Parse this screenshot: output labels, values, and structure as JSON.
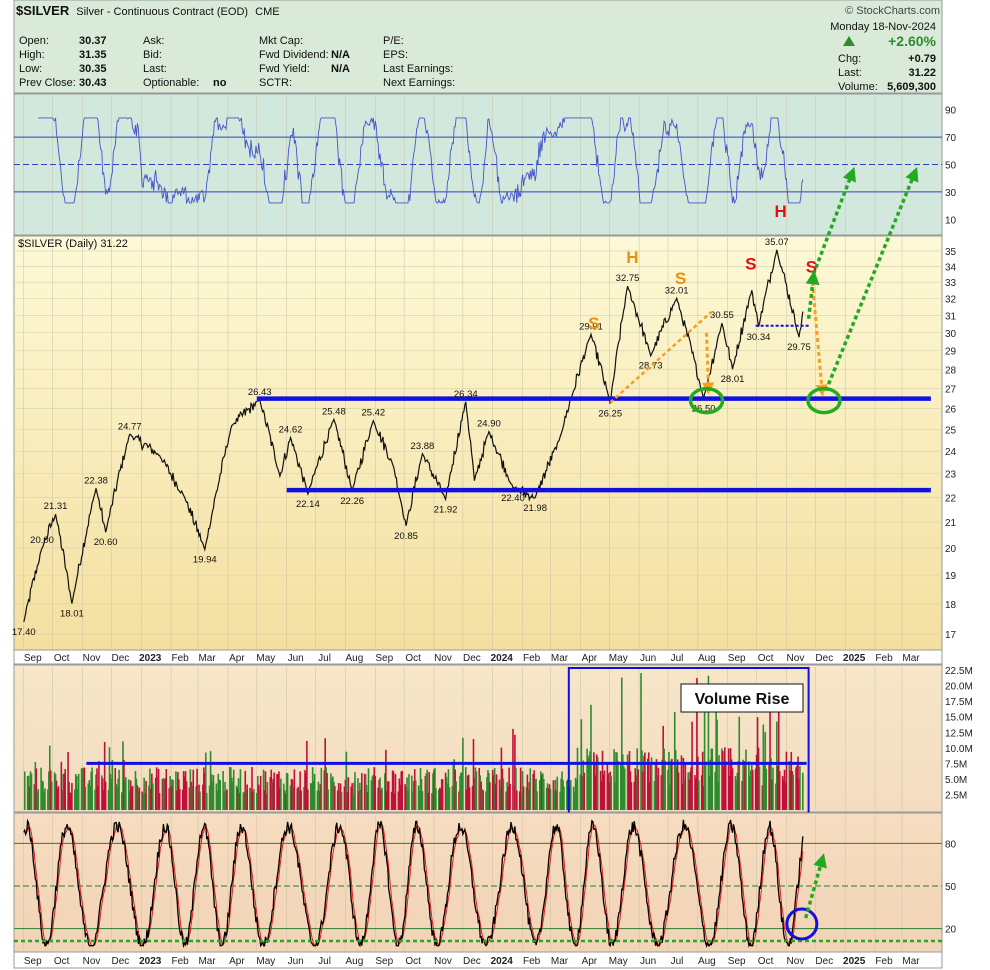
{
  "header": {
    "symbol": "$SILVER",
    "name": "Silver - Continuous Contract (EOD)",
    "exchange": "CME",
    "site": "© StockCharts.com",
    "date": "Monday  18-Nov-2024",
    "pct_change": "+2.60%",
    "chg_label": "Chg:",
    "chg": "+0.79",
    "last_label": "Last:",
    "last": "31.22",
    "volume_label": "Volume:",
    "volume": "5,609,300",
    "col1": [
      {
        "label": "Open:",
        "value": "30.37"
      },
      {
        "label": "High:",
        "value": "31.35"
      },
      {
        "label": "Low:",
        "value": "30.35"
      },
      {
        "label": "Prev Close:",
        "value": "30.43"
      }
    ],
    "col2": [
      {
        "label": "Ask:",
        "value": ""
      },
      {
        "label": "Bid:",
        "value": ""
      },
      {
        "label": "Last:",
        "value": ""
      },
      {
        "label": "Optionable:",
        "value": "no"
      }
    ],
    "col3": [
      {
        "label": "Mkt Cap:",
        "value": ""
      },
      {
        "label": "Fwd Dividend:",
        "value": "N/A"
      },
      {
        "label": "Fwd Yield:",
        "value": "N/A"
      },
      {
        "label": "SCTR:",
        "value": ""
      }
    ],
    "col4": [
      {
        "label": "P/E:",
        "value": ""
      },
      {
        "label": "EPS:",
        "value": ""
      },
      {
        "label": "Last Earnings:",
        "value": ""
      },
      {
        "label": "Next Earnings:",
        "value": ""
      }
    ]
  },
  "chart_data": [
    {
      "type": "line",
      "panel": "rsi",
      "ylim": [
        0,
        100
      ],
      "yticks": [
        10,
        30,
        50,
        70,
        90
      ],
      "reference_lines": [
        30,
        50,
        70
      ],
      "colors": {
        "line": "#4455cc",
        "fill": "#3e8fa8"
      }
    },
    {
      "type": "line",
      "panel": "price",
      "title": "$SILVER (Daily) 31.22",
      "ylim": [
        16.5,
        36.0
      ],
      "log_scale": true,
      "yticks": [
        17,
        18,
        19,
        20,
        21,
        22,
        23,
        24,
        25,
        26,
        27,
        28,
        29,
        30,
        31,
        32,
        33,
        34,
        35
      ],
      "x_labels": [
        "Sep",
        "Oct",
        "Nov",
        "Dec",
        "2023",
        "Feb",
        "Mar",
        "Apr",
        "May",
        "Jun",
        "Jul",
        "Aug",
        "Sep",
        "Oct",
        "Nov",
        "Dec",
        "2024",
        "Feb",
        "Mar",
        "Apr",
        "May",
        "Jun",
        "Jul",
        "Aug",
        "Sep",
        "Oct",
        "Nov",
        "Dec",
        "2025",
        "Feb",
        "Mar"
      ],
      "key_points": [
        {
          "date": "2022-09-01",
          "value": 17.4
        },
        {
          "date": "2022-09-20",
          "value": 20.0
        },
        {
          "date": "2022-10-04",
          "value": 21.31
        },
        {
          "date": "2022-10-21",
          "value": 18.01
        },
        {
          "date": "2022-11-15",
          "value": 22.38
        },
        {
          "date": "2022-11-25",
          "value": 20.6
        },
        {
          "date": "2022-12-20",
          "value": 24.77
        },
        {
          "date": "2023-01-20",
          "value": 23.8
        },
        {
          "date": "2023-02-15",
          "value": 22.0
        },
        {
          "date": "2023-03-08",
          "value": 19.94
        },
        {
          "date": "2023-04-05",
          "value": 25.2
        },
        {
          "date": "2023-05-04",
          "value": 26.43
        },
        {
          "date": "2023-05-25",
          "value": 22.9
        },
        {
          "date": "2023-06-05",
          "value": 24.62
        },
        {
          "date": "2023-06-23",
          "value": 22.14
        },
        {
          "date": "2023-07-20",
          "value": 25.48
        },
        {
          "date": "2023-08-08",
          "value": 22.26
        },
        {
          "date": "2023-08-30",
          "value": 25.42
        },
        {
          "date": "2023-09-20",
          "value": 23.3
        },
        {
          "date": "2023-10-03",
          "value": 20.85
        },
        {
          "date": "2023-10-20",
          "value": 23.88
        },
        {
          "date": "2023-11-13",
          "value": 21.92
        },
        {
          "date": "2023-12-04",
          "value": 26.34
        },
        {
          "date": "2023-12-13",
          "value": 22.7
        },
        {
          "date": "2023-12-28",
          "value": 24.9
        },
        {
          "date": "2024-01-22",
          "value": 22.4
        },
        {
          "date": "2024-02-14",
          "value": 21.98
        },
        {
          "date": "2024-03-10",
          "value": 24.5
        },
        {
          "date": "2024-04-12",
          "value": 29.91
        },
        {
          "date": "2024-05-02",
          "value": 26.25
        },
        {
          "date": "2024-05-20",
          "value": 32.75
        },
        {
          "date": "2024-06-13",
          "value": 28.73
        },
        {
          "date": "2024-07-10",
          "value": 32.01
        },
        {
          "date": "2024-08-07",
          "value": 26.5
        },
        {
          "date": "2024-08-26",
          "value": 30.55
        },
        {
          "date": "2024-09-06",
          "value": 28.01
        },
        {
          "date": "2024-09-26",
          "value": 32.5
        },
        {
          "date": "2024-10-03",
          "value": 30.34
        },
        {
          "date": "2024-10-22",
          "value": 35.07
        },
        {
          "date": "2024-11-14",
          "value": 29.75
        },
        {
          "date": "2024-11-18",
          "value": 31.22
        }
      ],
      "labels": [
        {
          "date": "2022-09-01",
          "value": 17.4,
          "text": "17.40"
        },
        {
          "date": "2022-09-20",
          "value": 20.0,
          "text": "20.00"
        },
        {
          "date": "2022-10-04",
          "value": 21.31,
          "text": "21.31"
        },
        {
          "date": "2022-10-21",
          "value": 18.01,
          "text": "18.01"
        },
        {
          "date": "2022-11-15",
          "value": 22.38,
          "text": "22.38"
        },
        {
          "date": "2022-11-25",
          "value": 20.6,
          "text": "20.60"
        },
        {
          "date": "2022-12-20",
          "value": 24.77,
          "text": "24.77"
        },
        {
          "date": "2023-03-08",
          "value": 19.94,
          "text": "19.94"
        },
        {
          "date": "2023-05-04",
          "value": 26.43,
          "text": "26.43"
        },
        {
          "date": "2023-06-05",
          "value": 24.62,
          "text": "24.62"
        },
        {
          "date": "2023-06-23",
          "value": 22.14,
          "text": "22.14"
        },
        {
          "date": "2023-07-20",
          "value": 25.48,
          "text": "25.48"
        },
        {
          "date": "2023-08-08",
          "value": 22.26,
          "text": "22.26"
        },
        {
          "date": "2023-08-30",
          "value": 25.42,
          "text": "25.42"
        },
        {
          "date": "2023-10-03",
          "value": 20.85,
          "text": "20.85"
        },
        {
          "date": "2023-10-20",
          "value": 23.88,
          "text": "23.88"
        },
        {
          "date": "2023-11-13",
          "value": 21.92,
          "text": "21.92"
        },
        {
          "date": "2023-12-04",
          "value": 26.34,
          "text": "26.34"
        },
        {
          "date": "2023-12-28",
          "value": 24.9,
          "text": "24.90"
        },
        {
          "date": "2024-01-22",
          "value": 22.4,
          "text": "22.40"
        },
        {
          "date": "2024-02-14",
          "value": 21.98,
          "text": "21.98"
        },
        {
          "date": "2024-04-12",
          "value": 29.91,
          "text": "29.91"
        },
        {
          "date": "2024-05-02",
          "value": 26.25,
          "text": "26.25"
        },
        {
          "date": "2024-05-20",
          "value": 32.75,
          "text": "32.75"
        },
        {
          "date": "2024-06-13",
          "value": 28.73,
          "text": "28.73"
        },
        {
          "date": "2024-07-10",
          "value": 32.01,
          "text": "32.01"
        },
        {
          "date": "2024-08-07",
          "value": 26.5,
          "text": "26.50"
        },
        {
          "date": "2024-08-26",
          "value": 30.55,
          "text": "30.55"
        },
        {
          "date": "2024-09-06",
          "value": 28.01,
          "text": "28.01"
        },
        {
          "date": "2024-10-03",
          "value": 30.34,
          "text": "30.34"
        },
        {
          "date": "2024-10-22",
          "value": 35.07,
          "text": "35.07"
        },
        {
          "date": "2024-11-14",
          "value": 29.75,
          "text": "29.75"
        }
      ],
      "support_lines": [
        {
          "value": 26.5,
          "from": "2023-05-01",
          "to": "2025-03-31"
        },
        {
          "value": 22.3,
          "from": "2023-06-01",
          "to": "2025-03-31"
        }
      ],
      "neckline": {
        "value": 30.4,
        "from": "2024-09-30",
        "to": "2024-11-26"
      },
      "annotations": [
        {
          "text": "S",
          "date": "2024-04-15",
          "value": 30.2,
          "color": "#f0900a"
        },
        {
          "text": "H",
          "date": "2024-05-25",
          "value": 34.2,
          "color": "#f0900a"
        },
        {
          "text": "S",
          "date": "2024-07-14",
          "value": 32.9,
          "color": "#f0900a"
        },
        {
          "text": "S",
          "date": "2024-09-25",
          "value": 33.8,
          "color": "#e01010"
        },
        {
          "text": "H",
          "date": "2024-10-26",
          "value": 37.3,
          "color": "#e01010"
        },
        {
          "text": "S",
          "date": "2024-11-27",
          "value": 33.6,
          "color": "#e01010"
        }
      ],
      "colors": {
        "bg_top": "#fbf7cf",
        "bg_bottom": "#f6e0a0",
        "line": "#111111",
        "support": "#1010e0",
        "target": "#22aa22",
        "projection": "#f5a020"
      }
    },
    {
      "type": "bar",
      "panel": "volume",
      "ylim": [
        0,
        23000000
      ],
      "yticks": [
        "2.5M",
        "5.0M",
        "7.5M",
        "10.0M",
        "12.5M",
        "15.0M",
        "17.5M",
        "20.0M",
        "22.5M"
      ],
      "average_line": 7500000,
      "box_label": "Volume Rise",
      "colors": {
        "up": "#2e8b2e",
        "down": "#c0103a",
        "box": "#1010e0"
      }
    },
    {
      "type": "line",
      "panel": "stochastic",
      "ylim": [
        5,
        100
      ],
      "yticks": [
        20,
        50,
        80
      ],
      "reference_lines": [
        20,
        50,
        80
      ],
      "x_labels": [
        "Sep",
        "Oct",
        "Nov",
        "Dec",
        "2023",
        "Feb",
        "Mar",
        "Apr",
        "May",
        "Jun",
        "Jul",
        "Aug",
        "Sep",
        "Oct",
        "Nov",
        "Dec",
        "2024",
        "Feb",
        "Mar",
        "Apr",
        "May",
        "Jun",
        "Jul",
        "Aug",
        "Sep",
        "Oct",
        "Nov",
        "Dec",
        "2025",
        "Feb",
        "Mar"
      ],
      "colors": {
        "k": "#000000",
        "d": "#e02020"
      }
    }
  ]
}
